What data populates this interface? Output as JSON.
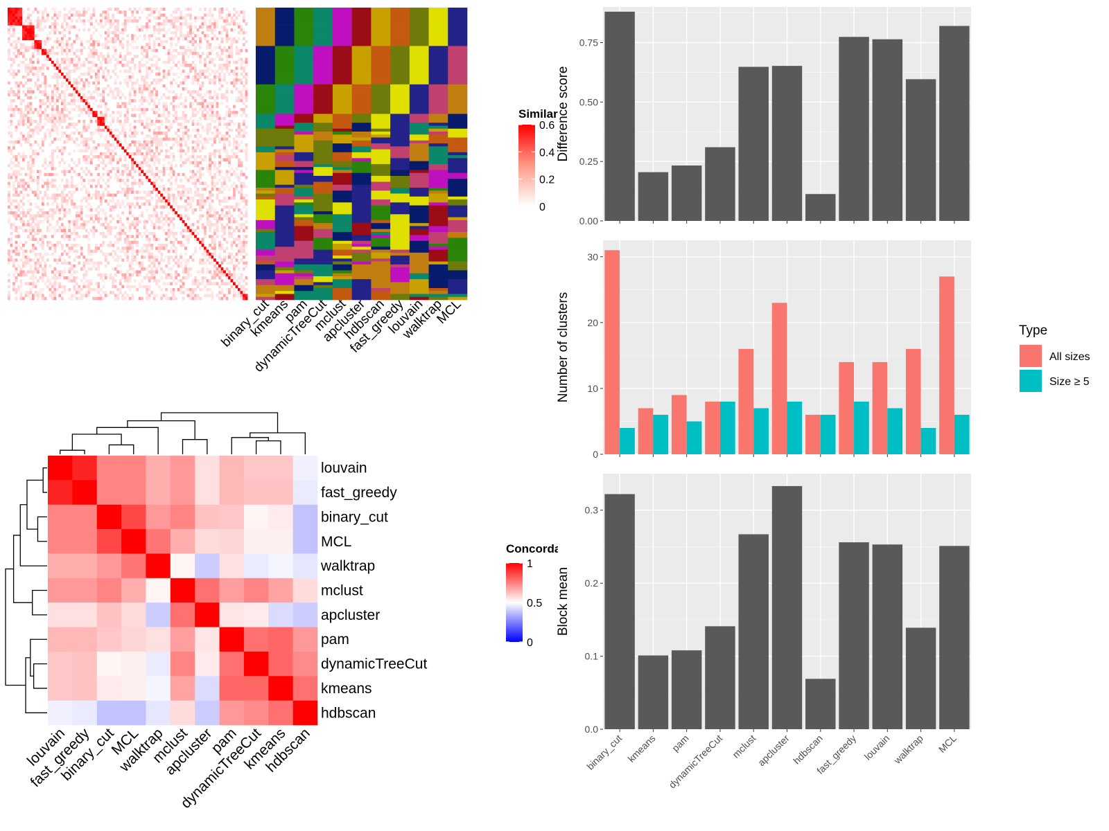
{
  "chart_data": [
    {
      "id": "similarity",
      "type": "heatmap",
      "legend_title": "Similarity",
      "legend_ticks": [
        0,
        0.2,
        0.4,
        0.6
      ],
      "legend_colors": [
        "#FFFFFF",
        "#FF0000"
      ],
      "assignment_columns": [
        "binary_cut",
        "kmeans",
        "pam",
        "dynamicTreeCut",
        "mclust",
        "apcluster",
        "hdbscan",
        "fast_greedy",
        "louvain",
        "walktrap",
        "MCL"
      ],
      "block_sizes": [
        6,
        5,
        3,
        2,
        1,
        1,
        1,
        1,
        1,
        1,
        1,
        1,
        1,
        1,
        1,
        1,
        1,
        1,
        1,
        1,
        1,
        1,
        1,
        2,
        3,
        1,
        1,
        1,
        1,
        1,
        1,
        1,
        1,
        1,
        1,
        1,
        1,
        1,
        1,
        1,
        1,
        1,
        1,
        1,
        1,
        1,
        1,
        1,
        1,
        1,
        1,
        1,
        1,
        1,
        1,
        1,
        1,
        1,
        1,
        1,
        1,
        1,
        1,
        1,
        1,
        1,
        1,
        1,
        1,
        1,
        1,
        1,
        1,
        1,
        1,
        1,
        1,
        1,
        1,
        1,
        1,
        1,
        2
      ],
      "cluster_palette": [
        "#C17E10",
        "#061B6B",
        "#2A8409",
        "#0B8769",
        "#BF0FBF",
        "#9B0C17",
        "#C8A000",
        "#C45A10",
        "#6E7A0A",
        "#E0E000",
        "#222288",
        "#C04070"
      ]
    },
    {
      "id": "concordance",
      "type": "heatmap",
      "legend_title": "Concordance",
      "legend_ticks": [
        0,
        0.5,
        1
      ],
      "legend_colors": [
        "#0000FF",
        "#FFFFFF",
        "#FF0000"
      ],
      "rows": [
        "louvain",
        "fast_greedy",
        "binary_cut",
        "MCL",
        "walktrap",
        "mclust",
        "apcluster",
        "pam",
        "dynamicTreeCut",
        "kmeans",
        "hdbscan"
      ],
      "columns": [
        "louvain",
        "fast_greedy",
        "binary_cut",
        "MCL",
        "walktrap",
        "mclust",
        "apcluster",
        "pam",
        "dynamicTreeCut",
        "kmeans",
        "hdbscan"
      ],
      "values": [
        [
          1.0,
          0.93,
          0.74,
          0.74,
          0.66,
          0.7,
          0.56,
          0.64,
          0.61,
          0.61,
          0.47
        ],
        [
          0.93,
          1.0,
          0.74,
          0.74,
          0.66,
          0.7,
          0.56,
          0.64,
          0.62,
          0.62,
          0.46
        ],
        [
          0.74,
          0.74,
          1.0,
          0.86,
          0.7,
          0.74,
          0.62,
          0.61,
          0.52,
          0.54,
          0.38
        ],
        [
          0.74,
          0.74,
          0.86,
          1.0,
          0.77,
          0.66,
          0.57,
          0.58,
          0.53,
          0.53,
          0.38
        ],
        [
          0.66,
          0.66,
          0.7,
          0.77,
          1.0,
          0.52,
          0.4,
          0.56,
          0.46,
          0.48,
          0.45
        ],
        [
          0.7,
          0.7,
          0.74,
          0.66,
          0.52,
          1.0,
          0.78,
          0.69,
          0.74,
          0.68,
          0.57
        ],
        [
          0.56,
          0.56,
          0.62,
          0.57,
          0.4,
          0.78,
          1.0,
          0.55,
          0.54,
          0.43,
          0.4
        ],
        [
          0.64,
          0.64,
          0.61,
          0.58,
          0.56,
          0.69,
          0.55,
          1.0,
          0.78,
          0.8,
          0.7
        ],
        [
          0.61,
          0.62,
          0.52,
          0.53,
          0.46,
          0.74,
          0.54,
          0.78,
          1.0,
          0.8,
          0.73
        ],
        [
          0.61,
          0.62,
          0.54,
          0.53,
          0.48,
          0.68,
          0.43,
          0.8,
          0.8,
          1.0,
          0.78
        ],
        [
          0.47,
          0.46,
          0.38,
          0.38,
          0.45,
          0.57,
          0.4,
          0.7,
          0.73,
          0.78,
          1.0
        ]
      ]
    },
    {
      "id": "difference",
      "type": "bar",
      "categories": [
        "binary_cut",
        "kmeans",
        "pam",
        "dynamicTreeCut",
        "mclust",
        "apcluster",
        "hdbscan",
        "fast_greedy",
        "louvain",
        "walktrap",
        "MCL"
      ],
      "values": [
        0.88,
        0.205,
        0.233,
        0.31,
        0.648,
        0.652,
        0.113,
        0.774,
        0.764,
        0.596,
        0.82
      ],
      "ylabel": "Difference score",
      "ylim": [
        0,
        0.9
      ],
      "yticks": [
        0.0,
        0.25,
        0.5,
        0.75
      ],
      "ytick_labels": [
        "0.00",
        "0.25",
        "0.50",
        "0.75"
      ],
      "color": "#595959",
      "grid": true
    },
    {
      "id": "clusters",
      "type": "bar",
      "categories": [
        "binary_cut",
        "kmeans",
        "pam",
        "dynamicTreeCut",
        "mclust",
        "apcluster",
        "hdbscan",
        "fast_greedy",
        "louvain",
        "walktrap",
        "MCL"
      ],
      "series": [
        {
          "name": "All sizes",
          "values": [
            31,
            7,
            9,
            8,
            16,
            23,
            6,
            14,
            14,
            16,
            27
          ],
          "color": "#F8766D"
        },
        {
          "name": "Size ≥ 5",
          "values": [
            4,
            6,
            5,
            8,
            7,
            8,
            6,
            8,
            7,
            4,
            6
          ],
          "color": "#00BFC4"
        }
      ],
      "ylabel": "Number of clusters",
      "ylim": [
        0,
        32.5
      ],
      "yticks": [
        0,
        10,
        20,
        30
      ],
      "legend_title": "Type",
      "legend_position": "right",
      "grid": true
    },
    {
      "id": "block_mean",
      "type": "bar",
      "categories": [
        "binary_cut",
        "kmeans",
        "pam",
        "dynamicTreeCut",
        "mclust",
        "apcluster",
        "hdbscan",
        "fast_greedy",
        "louvain",
        "walktrap",
        "MCL"
      ],
      "values": [
        0.322,
        0.101,
        0.108,
        0.141,
        0.267,
        0.333,
        0.069,
        0.256,
        0.253,
        0.139,
        0.251
      ],
      "ylabel": "Block mean",
      "ylim": [
        0,
        0.35
      ],
      "yticks": [
        0.0,
        0.1,
        0.2,
        0.3
      ],
      "ytick_labels": [
        "0.0",
        "0.1",
        "0.2",
        "0.3"
      ],
      "color": "#595959",
      "grid": true
    }
  ]
}
